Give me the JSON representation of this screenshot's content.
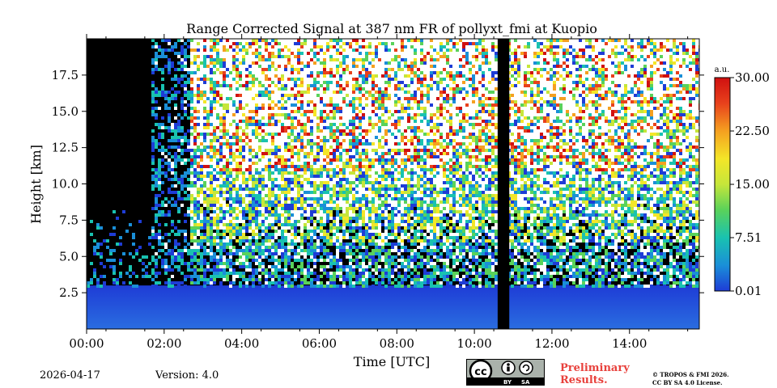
{
  "chart_data": {
    "type": "heatmap",
    "title": "Range Corrected Signal at 387 nm FR of pollyxt_fmi at Kuopio",
    "xlabel": "Time [UTC]",
    "ylabel": "Height [km]",
    "xlim_hours": [
      0,
      15.8
    ],
    "ylim_km": [
      0,
      20
    ],
    "x_ticks": [
      {
        "value": 0,
        "label": "00:00"
      },
      {
        "value": 2,
        "label": "02:00"
      },
      {
        "value": 4,
        "label": "04:00"
      },
      {
        "value": 6,
        "label": "06:00"
      },
      {
        "value": 8,
        "label": "08:00"
      },
      {
        "value": 10,
        "label": "10:00"
      },
      {
        "value": 12,
        "label": "12:00"
      },
      {
        "value": 14,
        "label": "14:00"
      }
    ],
    "y_ticks": [
      {
        "value": 2.5,
        "label": "2.5"
      },
      {
        "value": 5.0,
        "label": "5.0"
      },
      {
        "value": 7.5,
        "label": "7.5"
      },
      {
        "value": 10.0,
        "label": "10.0"
      },
      {
        "value": 12.5,
        "label": "12.5"
      },
      {
        "value": 15.0,
        "label": "15.0"
      },
      {
        "value": 17.5,
        "label": "17.5"
      }
    ],
    "colorbar": {
      "unit": "a.u.",
      "range": [
        0.01,
        30.0
      ],
      "ticks": [
        {
          "value": 0.01,
          "label": "0.01"
        },
        {
          "value": 7.51,
          "label": "7.51"
        },
        {
          "value": 15.0,
          "label": "15.00"
        },
        {
          "value": 22.5,
          "label": "22.50"
        },
        {
          "value": 30.0,
          "label": "30.00"
        }
      ],
      "colormap": [
        "#1e3cd6",
        "#1a8fd8",
        "#19c2b0",
        "#5ad25a",
        "#c6e63a",
        "#f4e628",
        "#f5a020",
        "#e8411c",
        "#d01010"
      ]
    },
    "data_gap_hours": [
      10.6,
      10.9
    ],
    "nighttime_dark_background_until_hours": 2.6,
    "background_color": "#000000",
    "saturated_color": "#ffffff"
  },
  "footer": {
    "date": "2026-04-17",
    "version": "Version: 4.0",
    "license_badge": {
      "icon": "cc-by-sa-icon",
      "labels": [
        "BY",
        "SA"
      ]
    },
    "preliminary_line1": "Preliminary",
    "preliminary_line2": "Results.",
    "copyright_line1": "© TROPOS & FMI 2026.",
    "copyright_line2": "CC BY SA 4.0 License."
  }
}
